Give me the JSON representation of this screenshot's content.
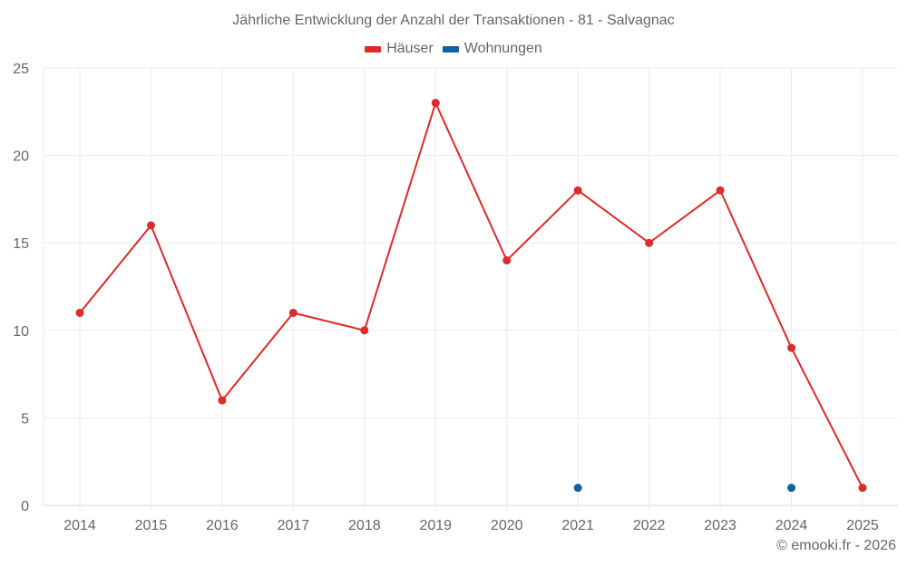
{
  "chart_data": {
    "type": "line",
    "title": "Jährliche Entwicklung der Anzahl der Transaktionen - 81 - Salvagnac",
    "xlabel": "",
    "ylabel": "",
    "categories": [
      "2014",
      "2015",
      "2016",
      "2017",
      "2018",
      "2019",
      "2020",
      "2021",
      "2022",
      "2023",
      "2024",
      "2025"
    ],
    "series": [
      {
        "name": "Häuser",
        "color": "#dd2a2a",
        "values": [
          11,
          16,
          6,
          11,
          10,
          23,
          14,
          18,
          15,
          18,
          9,
          1
        ],
        "lines": true
      },
      {
        "name": "Wohnungen",
        "color": "#0d62a0",
        "values": [
          null,
          null,
          null,
          null,
          null,
          null,
          null,
          1,
          null,
          null,
          1,
          null
        ],
        "lines": false
      }
    ],
    "ylim": [
      0,
      25
    ],
    "yticks": [
      0,
      5,
      10,
      15,
      20,
      25
    ],
    "grid": true,
    "legend_position": "top"
  },
  "header": {
    "title": "Jährliche Entwicklung der Anzahl der Transaktionen - 81 - Salvagnac"
  },
  "legend": {
    "items": [
      {
        "label": "Häuser",
        "color": "#dd2a2a"
      },
      {
        "label": "Wohnungen",
        "color": "#0d62a0"
      }
    ]
  },
  "footer": {
    "credit": "© emooki.fr - 2026"
  }
}
